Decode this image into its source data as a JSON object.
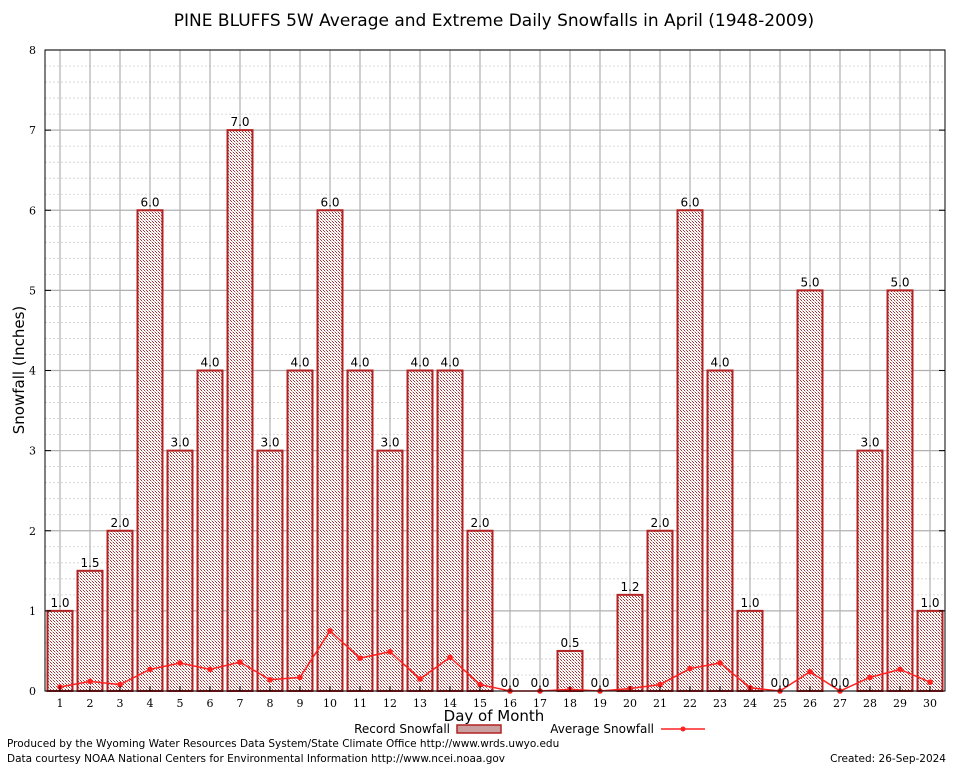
{
  "chart_data": {
    "type": "bar",
    "title": "PINE BLUFFS 5W Average and Extreme Daily Snowfalls in April (1948-2009)",
    "xlabel": "Day of Month",
    "ylabel": "Snowfall (Inches)",
    "ylim": [
      0,
      8
    ],
    "y_ticks": [
      "0",
      "1",
      "2",
      "3",
      "4",
      "5",
      "6",
      "7",
      "8"
    ],
    "grid": true,
    "categories": [
      "1",
      "2",
      "3",
      "4",
      "5",
      "6",
      "7",
      "8",
      "9",
      "10",
      "11",
      "12",
      "13",
      "14",
      "15",
      "16",
      "17",
      "18",
      "19",
      "20",
      "21",
      "22",
      "23",
      "24",
      "25",
      "26",
      "27",
      "28",
      "29",
      "30"
    ],
    "series": [
      {
        "name": "Record Snowfall",
        "kind": "bar",
        "color": "#b22222",
        "values": [
          1.0,
          1.5,
          2.0,
          6.0,
          3.0,
          4.0,
          7.0,
          3.0,
          4.0,
          6.0,
          4.0,
          3.0,
          4.0,
          4.0,
          2.0,
          0.0,
          0.0,
          0.5,
          0.0,
          1.2,
          2.0,
          6.0,
          4.0,
          1.0,
          0.0,
          5.0,
          0.0,
          3.0,
          5.0,
          1.0
        ],
        "labels": [
          "1.0",
          "1.5",
          "2.0",
          "6.0",
          "3.0",
          "4.0",
          "7.0",
          "3.0",
          "4.0",
          "6.0",
          "4.0",
          "3.0",
          "4.0",
          "4.0",
          "2.0",
          "0.0",
          "0.0",
          "0.5",
          "0.0",
          "1.2",
          "2.0",
          "6.0",
          "4.0",
          "1.0",
          "0.0",
          "5.0",
          "0.0",
          "3.0",
          "5.0",
          "1.0"
        ]
      },
      {
        "name": "Average Snowfall",
        "kind": "line",
        "color": "#ff2020",
        "values": [
          0.05,
          0.12,
          0.08,
          0.27,
          0.35,
          0.27,
          0.36,
          0.14,
          0.17,
          0.75,
          0.41,
          0.49,
          0.15,
          0.42,
          0.08,
          0.0,
          0.0,
          0.02,
          0.0,
          0.03,
          0.08,
          0.28,
          0.35,
          0.04,
          0.0,
          0.24,
          0.0,
          0.17,
          0.27,
          0.11
        ]
      }
    ],
    "legend_position": "bottom"
  },
  "footer": {
    "left_line1": "Produced by the Wyoming Water Resources Data System/State Climate Office http://www.wrds.uwyo.edu",
    "left_line2": "Data courtesy NOAA National Centers for Environmental Information http://www.ncei.noaa.gov",
    "created": "Created:  26-Sep-2024"
  }
}
